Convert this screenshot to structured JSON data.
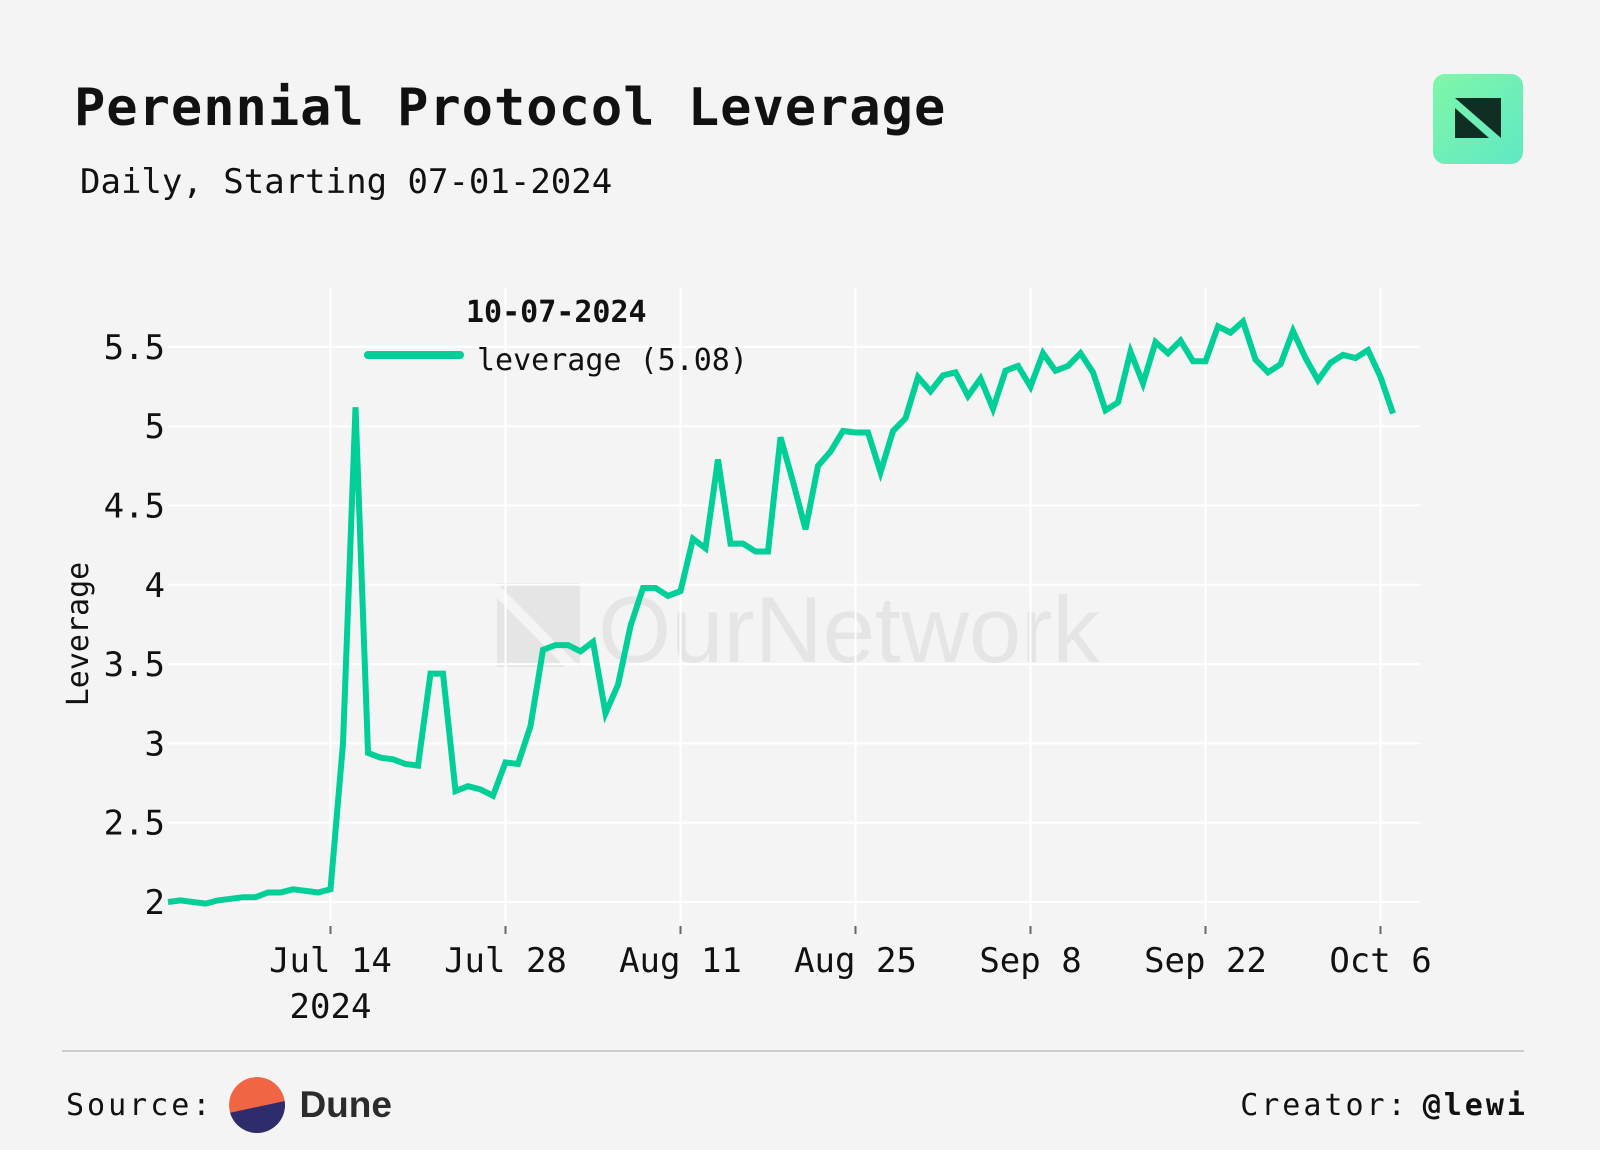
{
  "header": {
    "title": "Perennial Protocol Leverage",
    "subtitle": "Daily, Starting 07-01-2024"
  },
  "brand": {
    "logo_icon": "ournetwork-logo-icon",
    "watermark": "OurNetwork"
  },
  "footer": {
    "source_label": "Source:",
    "source_name": "Dune",
    "creator_label": "Creator:",
    "creator_handle": "@lewi"
  },
  "colors": {
    "line": "#00cf98",
    "background": "#f4f4f4",
    "grid": "#ffffff",
    "logo_bg": "#6ef0b3",
    "dune_orange": "#f06543",
    "dune_navy": "#2e2c6b"
  },
  "chart_data": {
    "type": "line",
    "title": "Perennial Protocol Leverage",
    "subtitle": "Daily, Starting 07-01-2024",
    "xlabel": "",
    "ylabel": "Leverage",
    "x_start": "2024-07-01",
    "x_end_day": 98,
    "ylim": [
      1.82,
      5.87
    ],
    "yticks": [
      {
        "value": 2,
        "label": "2"
      },
      {
        "value": 2.5,
        "label": "2.5"
      },
      {
        "value": 3,
        "label": "3"
      },
      {
        "value": 3.5,
        "label": "3.5"
      },
      {
        "value": 4,
        "label": "4"
      },
      {
        "value": 4.5,
        "label": "4.5"
      },
      {
        "value": 5,
        "label": "5"
      },
      {
        "value": 5.5,
        "label": "5.5"
      }
    ],
    "xticks": [
      {
        "day": 13,
        "label": "Jul 14",
        "sublabel": "2024"
      },
      {
        "day": 27,
        "label": "Jul 28",
        "sublabel": ""
      },
      {
        "day": 41,
        "label": "Aug 11",
        "sublabel": ""
      },
      {
        "day": 55,
        "label": "Aug 25",
        "sublabel": ""
      },
      {
        "day": 69,
        "label": "Sep 8",
        "sublabel": ""
      },
      {
        "day": 83,
        "label": "Sep 22",
        "sublabel": ""
      },
      {
        "day": 97,
        "label": "Oct 6",
        "sublabel": ""
      }
    ],
    "grid": true,
    "legend": {
      "placement": "top-left",
      "date": "10-07-2024",
      "entry": "leverage (5.08)"
    },
    "series": [
      {
        "name": "leverage",
        "values": [
          2.0,
          2.01,
          2.0,
          1.99,
          2.01,
          2.02,
          2.03,
          2.03,
          2.06,
          2.06,
          2.08,
          2.07,
          2.06,
          2.08,
          3.0,
          5.12,
          2.94,
          2.91,
          2.9,
          2.87,
          2.86,
          3.44,
          3.44,
          2.7,
          2.73,
          2.71,
          2.67,
          2.88,
          2.87,
          3.11,
          3.59,
          3.62,
          3.62,
          3.58,
          3.64,
          3.19,
          3.37,
          3.74,
          3.98,
          3.98,
          3.93,
          3.96,
          4.29,
          4.23,
          4.79,
          4.26,
          4.26,
          4.21,
          4.21,
          4.93,
          4.65,
          4.35,
          4.75,
          4.84,
          4.97,
          4.96,
          4.96,
          4.71,
          4.97,
          5.05,
          5.31,
          5.22,
          5.32,
          5.34,
          5.19,
          5.3,
          5.11,
          5.35,
          5.38,
          5.25,
          5.46,
          5.35,
          5.38,
          5.46,
          5.34,
          5.1,
          5.15,
          5.47,
          5.27,
          5.53,
          5.46,
          5.54,
          5.41,
          5.41,
          5.63,
          5.59,
          5.66,
          5.42,
          5.34,
          5.39,
          5.6,
          5.43,
          5.29,
          5.4,
          5.45,
          5.43,
          5.48,
          5.31,
          5.08
        ]
      }
    ]
  }
}
